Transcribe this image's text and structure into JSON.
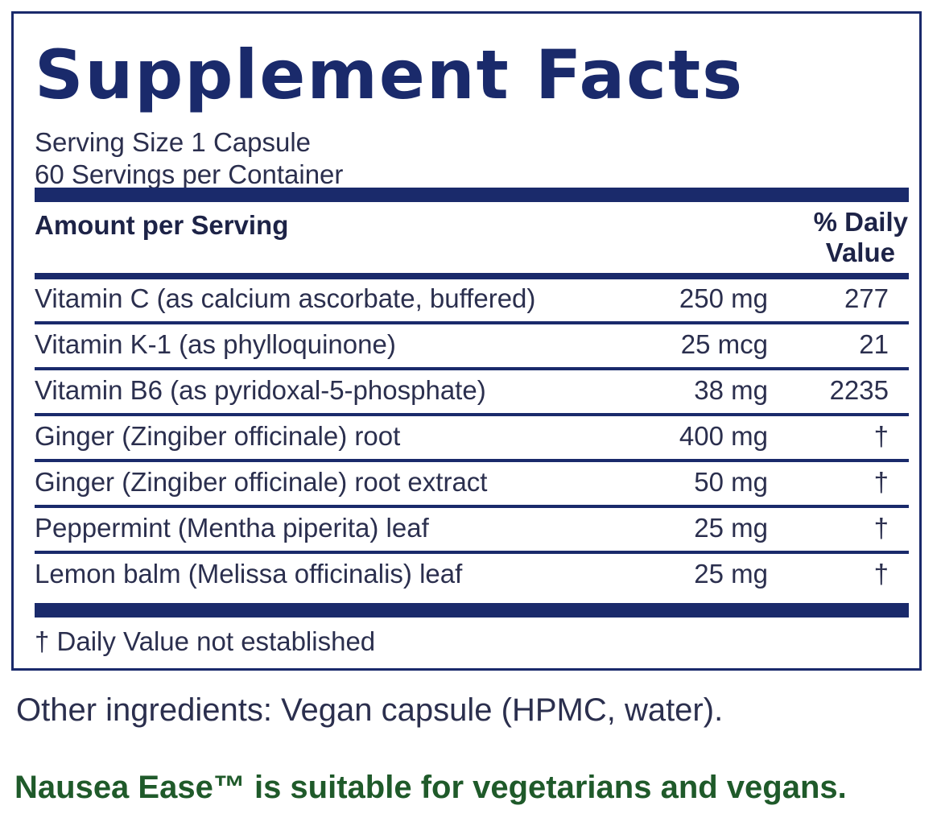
{
  "title": "Supplement Facts",
  "serving_size": "Serving Size 1 Capsule",
  "servings_per_container": "60 Servings per Container",
  "header": {
    "amount_per_serving": "Amount per Serving",
    "daily_value_line1": "% Daily",
    "daily_value_line2": "Value"
  },
  "rows": [
    {
      "label": "Vitamin C (as calcium ascorbate, buffered)",
      "amount": "250 mg",
      "dv": "277"
    },
    {
      "label": "Vitamin K-1 (as phylloquinone)",
      "amount": "25 mcg",
      "dv": "21"
    },
    {
      "label": "Vitamin B6 (as pyridoxal-5-phosphate)",
      "amount": "38 mg",
      "dv": "2235"
    },
    {
      "label": "Ginger (Zingiber officinale) root",
      "amount": "400 mg",
      "dv": "†"
    },
    {
      "label": "Ginger (Zingiber officinale) root extract",
      "amount": "50 mg",
      "dv": "†"
    },
    {
      "label": "Peppermint (Mentha piperita) leaf",
      "amount": "25 mg",
      "dv": "†"
    },
    {
      "label": "Lemon balm (Melissa officinalis) leaf",
      "amount": "25 mg",
      "dv": "†"
    }
  ],
  "footnote": "† Daily Value not established",
  "other_ingredients": "Other ingredients: Vegan capsule (HPMC, water).",
  "vegan_statement": "Nausea Ease™ is suitable for vegetarians and vegans.",
  "colors": {
    "border_navy": "#1a2a6b",
    "text": "#2b2f4e",
    "green": "#1f5a2a"
  }
}
